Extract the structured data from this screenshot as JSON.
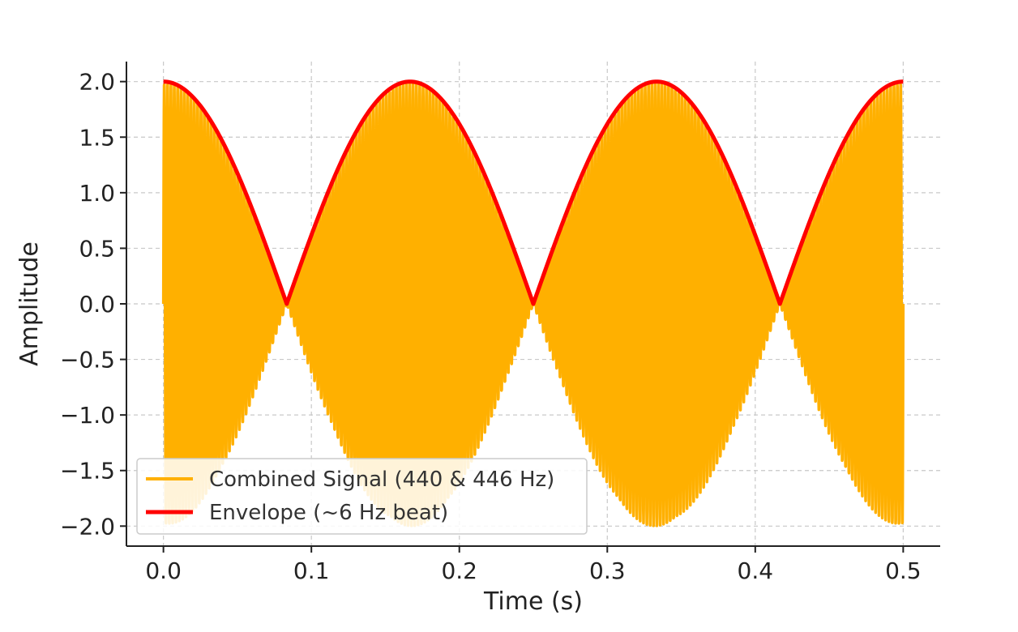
{
  "chart_data": {
    "type": "line",
    "title": "",
    "xlabel": "Time (s)",
    "ylabel": "Amplitude",
    "xlim": [
      -0.025,
      0.525
    ],
    "ylim": [
      -2.18,
      2.18
    ],
    "xticks": [
      0.0,
      0.1,
      0.2,
      0.3,
      0.4,
      0.5
    ],
    "xtick_labels": [
      "0.0",
      "0.1",
      "0.2",
      "0.3",
      "0.4",
      "0.5"
    ],
    "yticks": [
      2.0,
      1.5,
      1.0,
      0.5,
      0.0,
      -0.5,
      -1.0,
      -1.5,
      -2.0
    ],
    "ytick_labels": [
      "2.0",
      "1.5",
      "1.0",
      "0.5",
      "0.0",
      "−0.5",
      "−1.0",
      "−1.5",
      "−2.0"
    ],
    "grid": true,
    "legend_position": "lower-left",
    "series": [
      {
        "name": "Combined Signal (440 & 446 Hz)",
        "color": "#FFB000",
        "expression": "sin(2*pi*440*t) + sin(2*pi*446*t)",
        "frequencies_hz": [
          440,
          446
        ],
        "t_range": [
          0.0,
          0.5
        ]
      },
      {
        "name": "Envelope (~6 Hz beat)",
        "color": "#FF0000",
        "expression": "|2*cos(2*pi*3*t)|",
        "beat_frequency_hz": 6,
        "t_range": [
          0.0,
          0.5
        ]
      }
    ]
  }
}
